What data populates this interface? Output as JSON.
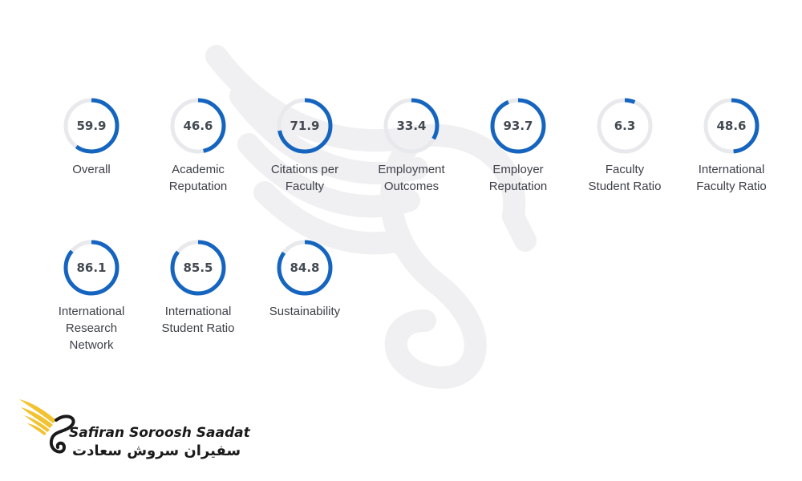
{
  "chart_data": {
    "type": "radial-progress",
    "max": 100,
    "colors": {
      "progress": "#1565c0",
      "track": "#e8e9ec"
    },
    "metrics": [
      {
        "label": "Overall",
        "value": 59.9
      },
      {
        "label": "Academic\nReputation",
        "value": 46.6
      },
      {
        "label": "Citations per\nFaculty",
        "value": 71.9
      },
      {
        "label": "Employment\nOutcomes",
        "value": 33.4
      },
      {
        "label": "Employer\nReputation",
        "value": 93.7
      },
      {
        "label": "Faculty\nStudent Ratio",
        "value": 6.3
      },
      {
        "label": "International\nFaculty Ratio",
        "value": 48.6
      },
      {
        "label": "International\nResearch\nNetwork",
        "value": 86.1
      },
      {
        "label": "International\nStudent Ratio",
        "value": 85.5
      },
      {
        "label": "Sustainability",
        "value": 84.8
      }
    ]
  },
  "brand": {
    "name_en": "Safiran Soroosh Saadat",
    "name_fa": "سفیران سروش سعادت",
    "logo_color": "#f2c230"
  }
}
